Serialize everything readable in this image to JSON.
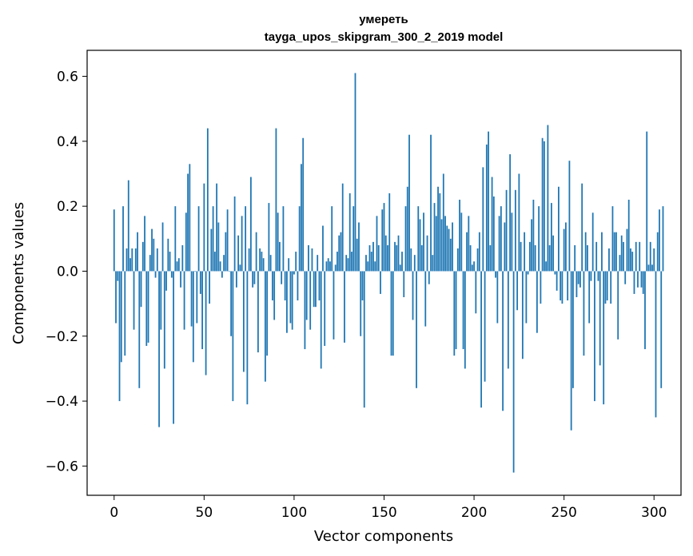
{
  "chart_data": {
    "type": "bar",
    "title_line1": "умереть",
    "title_line2": "tayga_upos_skipgram_300_2_2019 model",
    "xlabel": "Vector components",
    "ylabel": "Components values",
    "xlim": [
      -15,
      315
    ],
    "ylim": [
      -0.69,
      0.68
    ],
    "xticks": [
      0,
      50,
      100,
      150,
      200,
      250,
      300
    ],
    "xtick_labels": [
      "0",
      "50",
      "100",
      "150",
      "200",
      "250",
      "300"
    ],
    "yticks": [
      -0.6,
      -0.4,
      -0.2,
      0.0,
      0.2,
      0.4,
      0.6
    ],
    "ytick_labels": [
      "−0.6",
      "−0.4",
      "−0.2",
      "0.0",
      "0.2",
      "0.4",
      "0.6"
    ],
    "bar_color": "#1f77b4",
    "values": [
      0.19,
      -0.16,
      -0.03,
      -0.4,
      -0.28,
      0.2,
      -0.26,
      0.07,
      0.28,
      0.04,
      0.07,
      -0.18,
      0.07,
      0.12,
      -0.36,
      -0.11,
      0.09,
      0.17,
      -0.23,
      -0.22,
      0.05,
      0.13,
      0.1,
      -0.02,
      0.07,
      -0.48,
      -0.18,
      0.15,
      -0.3,
      -0.06,
      0.1,
      0.06,
      -0.02,
      -0.47,
      0.2,
      0.03,
      0.04,
      -0.05,
      0.08,
      -0.18,
      0.18,
      0.3,
      0.33,
      -0.17,
      -0.28,
      0.0,
      -0.16,
      0.2,
      -0.07,
      -0.24,
      0.27,
      -0.32,
      0.44,
      -0.1,
      0.13,
      0.2,
      0.06,
      0.27,
      0.15,
      0.03,
      -0.02,
      0.05,
      0.12,
      0.19,
      0.0,
      -0.2,
      -0.4,
      0.23,
      -0.05,
      0.11,
      0.02,
      0.17,
      -0.31,
      0.2,
      -0.41,
      0.07,
      0.29,
      -0.05,
      -0.04,
      0.12,
      -0.25,
      0.07,
      0.06,
      0.04,
      -0.34,
      -0.26,
      0.21,
      0.05,
      -0.09,
      -0.15,
      0.44,
      0.18,
      0.09,
      -0.04,
      0.2,
      -0.09,
      -0.19,
      0.04,
      -0.16,
      -0.18,
      -0.01,
      0.06,
      -0.09,
      0.2,
      0.33,
      0.41,
      -0.24,
      -0.15,
      0.08,
      -0.18,
      0.07,
      -0.11,
      -0.11,
      0.05,
      -0.09,
      -0.3,
      0.14,
      -0.23,
      0.03,
      0.04,
      0.03,
      0.2,
      -0.21,
      0.02,
      0.06,
      0.11,
      0.12,
      0.27,
      -0.22,
      0.05,
      0.04,
      0.24,
      0.06,
      0.2,
      0.61,
      0.1,
      0.15,
      -0.2,
      -0.09,
      -0.42,
      0.05,
      0.03,
      0.08,
      0.06,
      0.09,
      0.03,
      0.17,
      0.08,
      -0.07,
      0.19,
      0.21,
      0.11,
      0.08,
      0.24,
      -0.26,
      -0.26,
      0.09,
      0.08,
      0.11,
      0.02,
      0.06,
      -0.08,
      0.2,
      0.26,
      0.42,
      0.07,
      -0.15,
      0.05,
      -0.36,
      0.2,
      0.16,
      0.08,
      0.18,
      -0.17,
      0.11,
      -0.04,
      0.42,
      0.05,
      0.21,
      0.17,
      0.26,
      0.24,
      0.16,
      0.3,
      0.17,
      0.14,
      0.13,
      0.1,
      0.15,
      -0.26,
      -0.24,
      0.07,
      0.22,
      0.18,
      -0.24,
      -0.3,
      0.12,
      0.17,
      0.08,
      0.02,
      0.03,
      -0.13,
      0.07,
      0.12,
      -0.42,
      0.32,
      -0.34,
      0.39,
      0.43,
      0.08,
      0.29,
      0.23,
      -0.02,
      -0.16,
      0.17,
      0.2,
      -0.43,
      0.15,
      0.25,
      -0.3,
      0.36,
      0.18,
      -0.62,
      0.25,
      -0.12,
      0.3,
      0.09,
      -0.27,
      0.12,
      -0.16,
      -0.01,
      0.09,
      0.16,
      0.22,
      0.08,
      -0.19,
      0.2,
      -0.1,
      0.41,
      0.4,
      0.03,
      0.45,
      0.08,
      0.21,
      0.11,
      -0.01,
      -0.06,
      0.26,
      -0.09,
      -0.1,
      0.13,
      0.15,
      -0.09,
      0.34,
      -0.49,
      -0.36,
      0.08,
      -0.08,
      -0.04,
      -0.05,
      0.27,
      -0.26,
      0.12,
      0.08,
      -0.16,
      -0.03,
      0.18,
      -0.4,
      0.09,
      -0.03,
      -0.29,
      0.12,
      -0.41,
      -0.1,
      -0.09,
      0.07,
      -0.1,
      0.2,
      0.12,
      0.12,
      -0.21,
      0.05,
      0.11,
      0.09,
      -0.04,
      0.13,
      0.22,
      0.07,
      0.06,
      -0.07,
      0.09,
      -0.05,
      0.09,
      -0.05,
      -0.07,
      -0.24,
      0.43,
      0.02,
      0.09,
      0.02,
      0.07,
      -0.45,
      0.12,
      0.19,
      -0.36,
      0.2
    ]
  }
}
